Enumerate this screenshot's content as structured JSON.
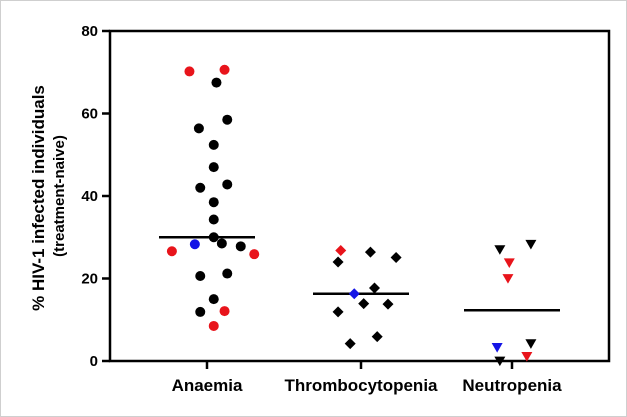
{
  "chart_data": {
    "type": "scatter",
    "ylabel": "% HIV-1 infected individuals",
    "ylabel_sub": "(treatment-naive)",
    "ylim": [
      0,
      80
    ],
    "yticks": [
      0,
      20,
      40,
      60,
      80
    ],
    "categories": [
      "Anaemia",
      "Thrombocytopenia",
      "Neutropenia"
    ],
    "colors": {
      "default": "#000000",
      "red": "#e8141b",
      "blue": "#1414e6"
    },
    "medians": [
      30,
      16.3,
      12.3
    ],
    "groups": [
      {
        "category": "Anaemia",
        "marker": "circle",
        "points": [
          {
            "dx": -0.13,
            "y": 70.2,
            "color": "red"
          },
          {
            "dx": 0.13,
            "y": 70.6,
            "color": "red"
          },
          {
            "dx": 0.07,
            "y": 67.5,
            "color": "default"
          },
          {
            "dx": 0.15,
            "y": 58.5,
            "color": "default"
          },
          {
            "dx": -0.06,
            "y": 56.4,
            "color": "default"
          },
          {
            "dx": 0.05,
            "y": 52.4,
            "color": "default"
          },
          {
            "dx": 0.05,
            "y": 47.0,
            "color": "default"
          },
          {
            "dx": 0.15,
            "y": 42.8,
            "color": "default"
          },
          {
            "dx": -0.05,
            "y": 42.0,
            "color": "default"
          },
          {
            "dx": 0.05,
            "y": 38.5,
            "color": "default"
          },
          {
            "dx": 0.05,
            "y": 34.3,
            "color": "default"
          },
          {
            "dx": 0.05,
            "y": 30.0,
            "color": "default"
          },
          {
            "dx": -0.09,
            "y": 28.3,
            "color": "blue"
          },
          {
            "dx": 0.11,
            "y": 28.5,
            "color": "default"
          },
          {
            "dx": 0.25,
            "y": 27.8,
            "color": "default"
          },
          {
            "dx": -0.26,
            "y": 26.6,
            "color": "red"
          },
          {
            "dx": 0.35,
            "y": 25.9,
            "color": "red"
          },
          {
            "dx": 0.15,
            "y": 21.2,
            "color": "default"
          },
          {
            "dx": -0.05,
            "y": 20.6,
            "color": "default"
          },
          {
            "dx": 0.05,
            "y": 15.0,
            "color": "default"
          },
          {
            "dx": -0.05,
            "y": 11.9,
            "color": "default"
          },
          {
            "dx": 0.13,
            "y": 12.1,
            "color": "red"
          },
          {
            "dx": 0.05,
            "y": 8.5,
            "color": "red"
          }
        ]
      },
      {
        "category": "Thrombocytopenia",
        "marker": "diamond",
        "points": [
          {
            "dx": -0.15,
            "y": 26.8,
            "color": "red"
          },
          {
            "dx": 0.07,
            "y": 26.4,
            "color": "default"
          },
          {
            "dx": 0.26,
            "y": 25.1,
            "color": "default"
          },
          {
            "dx": -0.17,
            "y": 24.0,
            "color": "default"
          },
          {
            "dx": 0.1,
            "y": 17.7,
            "color": "default"
          },
          {
            "dx": -0.05,
            "y": 16.3,
            "color": "blue"
          },
          {
            "dx": 0.02,
            "y": 13.9,
            "color": "default"
          },
          {
            "dx": 0.2,
            "y": 13.8,
            "color": "default"
          },
          {
            "dx": -0.17,
            "y": 11.9,
            "color": "default"
          },
          {
            "dx": 0.12,
            "y": 5.9,
            "color": "default"
          },
          {
            "dx": -0.08,
            "y": 4.2,
            "color": "default"
          }
        ]
      },
      {
        "category": "Neutropenia",
        "marker": "triangle-down",
        "points": [
          {
            "dx": 0.14,
            "y": 28.5,
            "color": "default"
          },
          {
            "dx": -0.09,
            "y": 27.2,
            "color": "default"
          },
          {
            "dx": -0.02,
            "y": 24.0,
            "color": "red"
          },
          {
            "dx": -0.03,
            "y": 20.2,
            "color": "red"
          },
          {
            "dx": 0.14,
            "y": 4.4,
            "color": "default"
          },
          {
            "dx": -0.11,
            "y": 3.5,
            "color": "blue"
          },
          {
            "dx": 0.11,
            "y": 1.3,
            "color": "red"
          },
          {
            "dx": -0.09,
            "y": 0.2,
            "color": "default"
          }
        ]
      }
    ]
  }
}
